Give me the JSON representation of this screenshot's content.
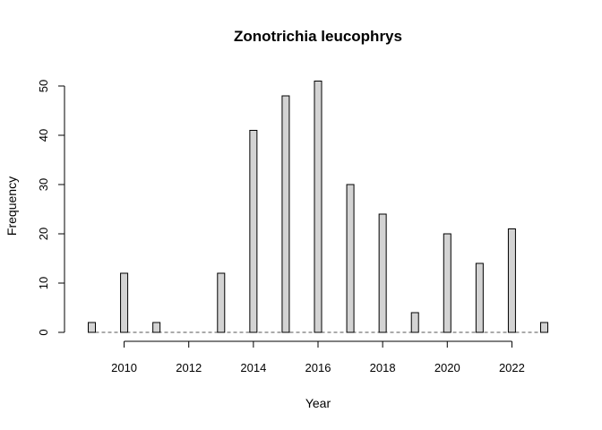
{
  "chart_data": {
    "type": "bar",
    "title": "Zonotrichia leucophrys",
    "xlabel": "Year",
    "ylabel": "Frequency",
    "x": [
      2009,
      2010,
      2011,
      2012,
      2013,
      2014,
      2015,
      2016,
      2017,
      2018,
      2019,
      2020,
      2021,
      2022,
      2023
    ],
    "values": [
      2,
      12,
      2,
      0,
      12,
      41,
      48,
      51,
      30,
      24,
      4,
      20,
      14,
      21,
      2
    ],
    "xlim": [
      2009,
      2023
    ],
    "ylim": [
      0,
      50
    ],
    "x_ticks": [
      "2010",
      "2012",
      "2014",
      "2016",
      "2018",
      "2020",
      "2022"
    ],
    "y_ticks": [
      "0",
      "10",
      "20",
      "30",
      "40",
      "50"
    ],
    "grid": false,
    "bar_color": "#d3d3d3"
  }
}
